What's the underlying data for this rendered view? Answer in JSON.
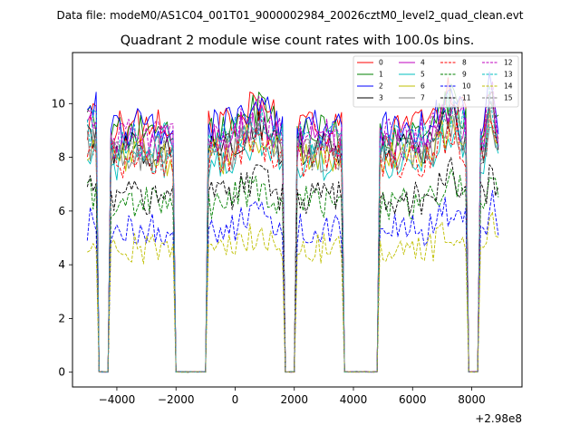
{
  "figure": {
    "suptitle": "Data file: modeM0/AS1C04_001T01_9000002984_20026cztM0_level2_quad_clean.evt"
  },
  "chart_data": {
    "type": "line",
    "title": "Quadrant 2 module wise count rates with 100.0s bins.",
    "xlabel": "",
    "ylabel": "",
    "x_offset_label": "+2.98e8",
    "xlim": [
      -5500,
      9700
    ],
    "ylim": [
      -0.55,
      11.9
    ],
    "x_ticks": [
      -4000,
      -2000,
      0,
      2000,
      4000,
      6000,
      8000
    ],
    "x_tick_labels": [
      "−4000",
      "−2000",
      "0",
      "2000",
      "4000",
      "6000",
      "8000"
    ],
    "y_ticks": [
      0,
      2,
      4,
      6,
      8,
      10
    ],
    "y_tick_labels": [
      "0",
      "2",
      "4",
      "6",
      "8",
      "10"
    ],
    "grid": false,
    "legend_placement": "top-right",
    "legend_columns": 4,
    "bin_size_s": 100,
    "x_range": [
      -5000,
      8900
    ],
    "gaps": [
      [
        -4600,
        -4300
      ],
      [
        -2000,
        -1000
      ],
      [
        1700,
        2000
      ],
      [
        3700,
        4800
      ],
      [
        7900,
        8200
      ]
    ],
    "series": [
      {
        "name": "0",
        "color": "#ff0000",
        "dash": "solid",
        "level": 9.1
      },
      {
        "name": "1",
        "color": "#008000",
        "dash": "solid",
        "level": 8.9
      },
      {
        "name": "2",
        "color": "#0000ff",
        "dash": "solid",
        "level": 9.1
      },
      {
        "name": "3",
        "color": "#000000",
        "dash": "solid",
        "level": 8.3
      },
      {
        "name": "4",
        "color": "#bf00bf",
        "dash": "solid",
        "level": 8.5
      },
      {
        "name": "5",
        "color": "#00bfbf",
        "dash": "solid",
        "level": 7.8
      },
      {
        "name": "6",
        "color": "#bfbf00",
        "dash": "solid",
        "level": 8.0
      },
      {
        "name": "7",
        "color": "#808080",
        "dash": "solid",
        "level": 8.1
      },
      {
        "name": "8",
        "color": "#ff0000",
        "dash": "dashed",
        "level": 7.9
      },
      {
        "name": "9",
        "color": "#008000",
        "dash": "dashed",
        "level": 6.3
      },
      {
        "name": "10",
        "color": "#0000ff",
        "dash": "dashed",
        "level": 5.3
      },
      {
        "name": "11",
        "color": "#000000",
        "dash": "dashed",
        "level": 6.5
      },
      {
        "name": "12",
        "color": "#bf00bf",
        "dash": "dashed",
        "level": 8.8
      },
      {
        "name": "13",
        "color": "#00bfbf",
        "dash": "dashed",
        "level": 8.6
      },
      {
        "name": "14",
        "color": "#bfbf00",
        "dash": "dashed",
        "level": 4.6
      },
      {
        "name": "15",
        "color": "#808080",
        "dash": "dashed",
        "level": 8.2
      }
    ]
  }
}
